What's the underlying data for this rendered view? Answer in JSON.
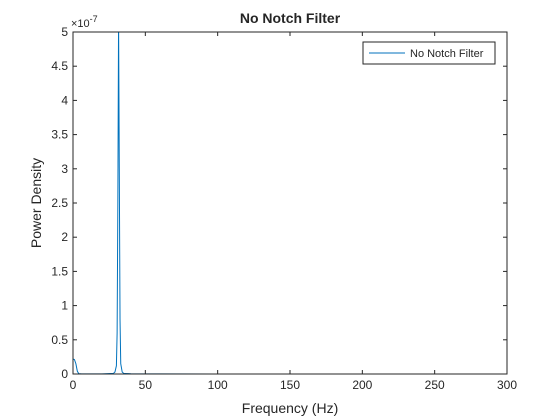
{
  "chart_data": {
    "type": "line",
    "title": "No Notch Filter",
    "xlabel": "Frequency (Hz)",
    "ylabel": "Power Density",
    "xlim": [
      0,
      300
    ],
    "ylim": [
      0,
      5e-07
    ],
    "y_exponent_label": "×10",
    "y_exponent_power": "-7",
    "x_ticks": [
      0,
      50,
      100,
      150,
      200,
      250,
      300
    ],
    "x_tick_labels": [
      "0",
      "50",
      "100",
      "150",
      "200",
      "250",
      "300"
    ],
    "y_ticks": [
      0,
      5e-08,
      1e-07,
      1.5e-07,
      2e-07,
      2.5e-07,
      3e-07,
      3.5e-07,
      4e-07,
      4.5e-07,
      5e-07
    ],
    "y_tick_labels": [
      "0",
      "0.5",
      "1",
      "1.5",
      "2",
      "2.5",
      "3",
      "3.5",
      "4",
      "4.5",
      "5"
    ],
    "grid": false,
    "legend_position": "top-right",
    "series": [
      {
        "name": "No Notch Filter",
        "color": "#0072BD",
        "x": [
          0,
          1,
          2,
          3,
          4,
          6,
          10,
          20,
          28,
          29,
          30,
          30.5,
          31,
          31.5,
          32,
          32.5,
          33,
          34,
          35,
          40,
          60,
          100,
          150,
          200,
          250,
          256,
          256.5,
          257
        ],
        "y": [
          2.2e-08,
          2.1e-08,
          1.5e-08,
          4e-09,
          5e-10,
          2e-10,
          1e-10,
          2e-10,
          1e-09,
          3e-09,
          1.2e-08,
          6e-08,
          2.5e-07,
          5.2e-07,
          3e-07,
          8e-08,
          1.5e-08,
          3e-09,
          1e-09,
          3e-10,
          1e-10,
          5e-11,
          3e-11,
          2e-11,
          1e-11,
          1e-11,
          1e-11,
          0
        ]
      }
    ]
  }
}
